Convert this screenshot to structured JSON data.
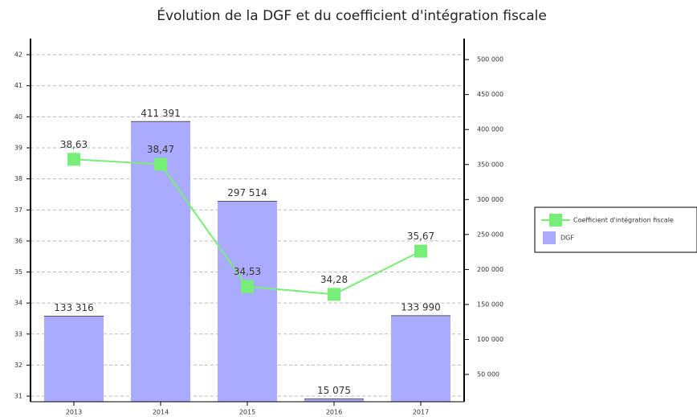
{
  "chart_data": {
    "type": "bar_line",
    "title": "Évolution de la DGF et du coefficient d'intégration fiscale",
    "categories": [
      "2013",
      "2014",
      "2015",
      "2016",
      "2017"
    ],
    "series": [
      {
        "name": "DGF",
        "type": "bar",
        "axis": "y2",
        "color": "#aaaaff",
        "values": [
          133316,
          411391,
          297514,
          15075,
          133990
        ],
        "value_labels": [
          "133 316",
          "411 391",
          "297 514",
          "15 075",
          "133 990"
        ]
      },
      {
        "name": "Coefficient d'intégration fiscale",
        "type": "line",
        "axis": "y",
        "color": "#77ee77",
        "values": [
          38.63,
          38.47,
          34.53,
          34.28,
          35.67
        ],
        "value_labels": [
          "38,63",
          "38,47",
          "34,53",
          "34,28",
          "35,67"
        ]
      }
    ],
    "ylim": [
      30.82,
      42.52
    ],
    "yticks": [
      31,
      32,
      33,
      34,
      35,
      36,
      37,
      38,
      39,
      40,
      41,
      42
    ],
    "y2lim": [
      11000,
      530000
    ],
    "y2ticks": [
      {
        "value": 50000,
        "label": "50 000"
      },
      {
        "value": 100000,
        "label": "100 000"
      },
      {
        "value": 150000,
        "label": "150 000"
      },
      {
        "value": 200000,
        "label": "200 000"
      },
      {
        "value": 250000,
        "label": "250 000"
      },
      {
        "value": 300000,
        "label": "300 000"
      },
      {
        "value": 350000,
        "label": "350 000"
      },
      {
        "value": 400000,
        "label": "400 000"
      },
      {
        "value": 450000,
        "label": "450 000"
      },
      {
        "value": 500000,
        "label": "500 000"
      }
    ],
    "grid": true,
    "legend": "right"
  }
}
